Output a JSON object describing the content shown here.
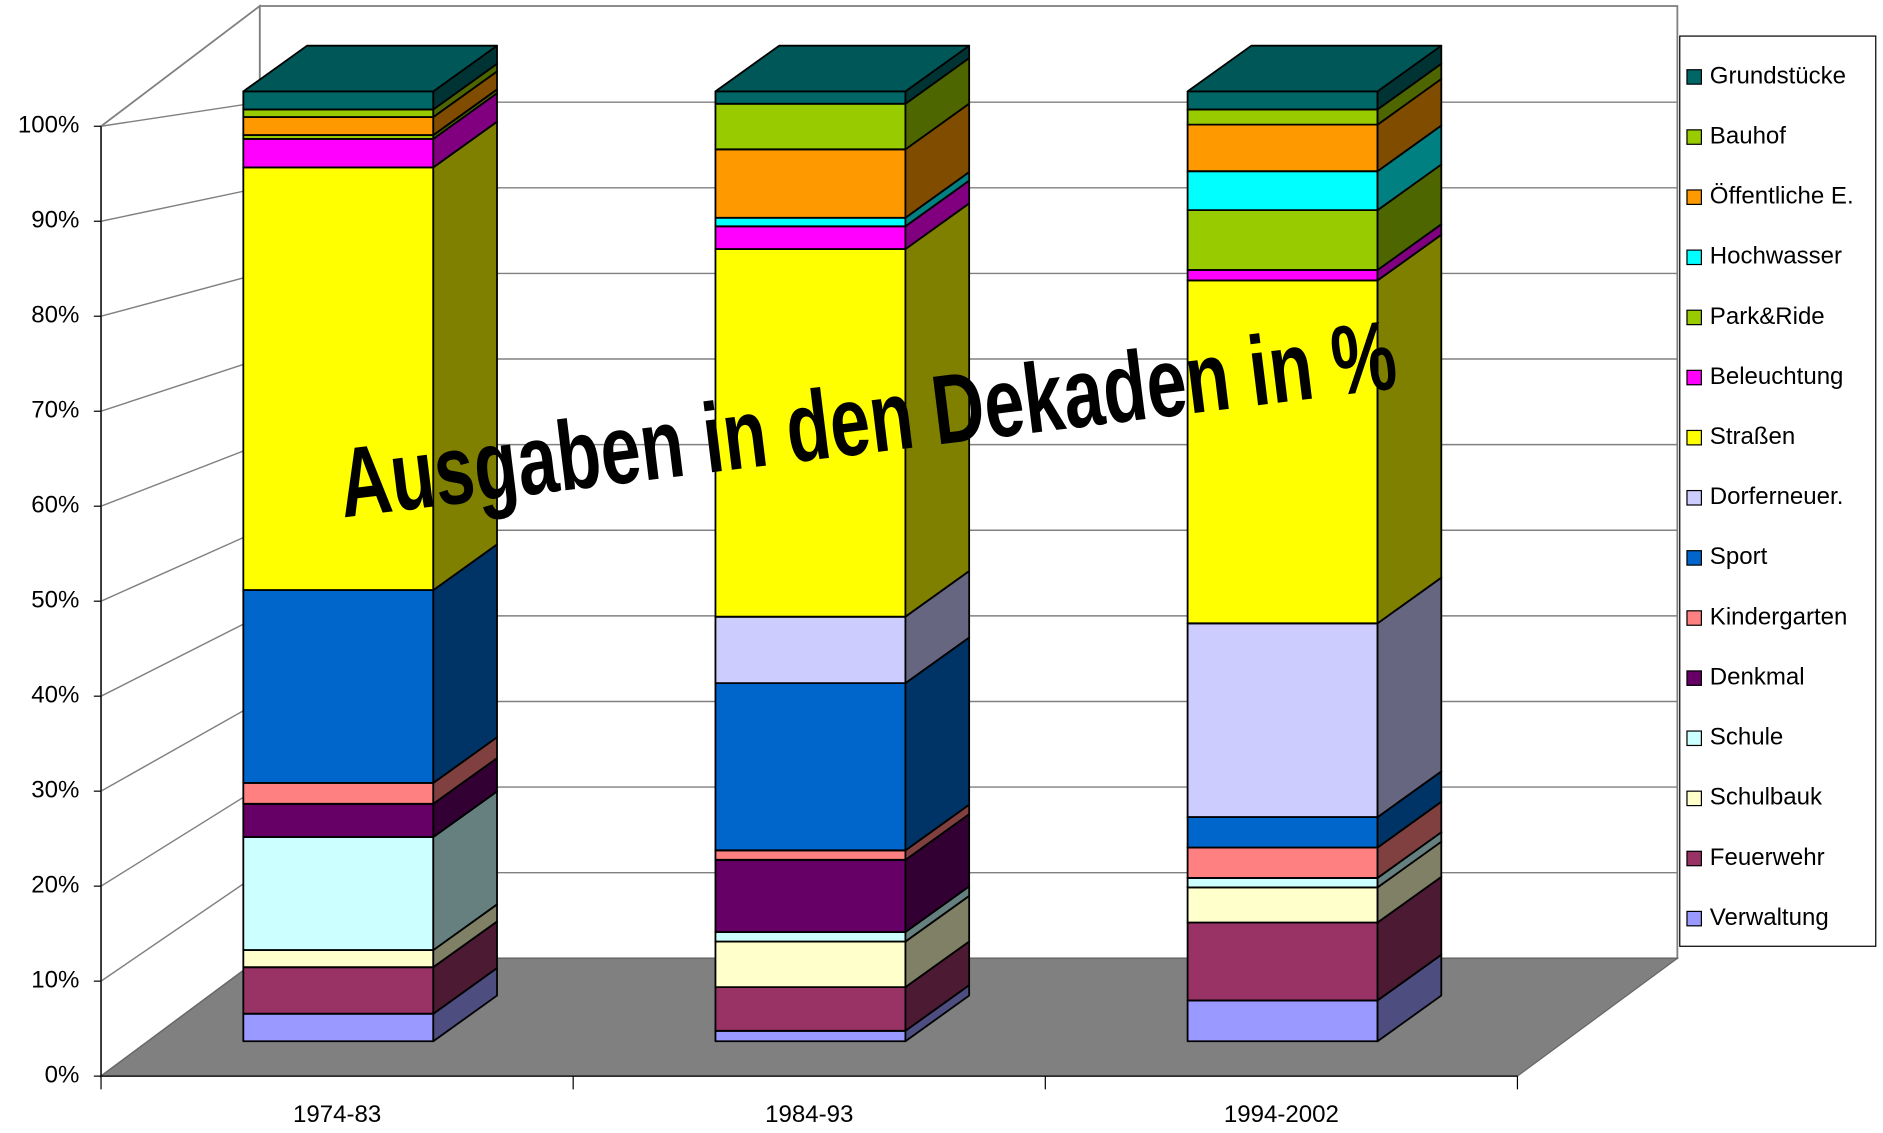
{
  "chart_data": {
    "type": "bar3d_stacked_percent",
    "title": "Ausgaben in den Dekaden in %",
    "categories": [
      "1974-83",
      "1984-93",
      "1994-2002"
    ],
    "ylim": [
      0,
      100
    ],
    "yticks": [
      {
        "value": 0,
        "label": "0%"
      },
      {
        "value": 10,
        "label": "10%"
      },
      {
        "value": 20,
        "label": "20%"
      },
      {
        "value": 30,
        "label": "30%"
      },
      {
        "value": 40,
        "label": "40%"
      },
      {
        "value": 50,
        "label": "50%"
      },
      {
        "value": 60,
        "label": "60%"
      },
      {
        "value": 70,
        "label": "70%"
      },
      {
        "value": 80,
        "label": "80%"
      },
      {
        "value": 90,
        "label": "90%"
      },
      {
        "value": 100,
        "label": "100%"
      }
    ],
    "grid": true,
    "legend": "right",
    "series": [
      {
        "name": "Verwaltung",
        "color": "#9999ff",
        "values": [
          2.9,
          1.1,
          4.3
        ]
      },
      {
        "name": "Feuerwehr",
        "color": "#993366",
        "values": [
          4.9,
          4.6,
          8.2
        ]
      },
      {
        "name": "Schulbauk",
        "color": "#ffffcc",
        "values": [
          1.8,
          4.8,
          3.7
        ]
      },
      {
        "name": "Schule",
        "color": "#ccffff",
        "values": [
          11.9,
          1.0,
          1.0
        ]
      },
      {
        "name": "Denkmal",
        "color": "#660066",
        "values": [
          3.5,
          7.6,
          0
        ]
      },
      {
        "name": "Kindergarten",
        "color": "#ff8080",
        "values": [
          2.2,
          1.0,
          3.2
        ]
      },
      {
        "name": "Sport",
        "color": "#0066cc",
        "values": [
          20.3,
          17.6,
          3.2
        ]
      },
      {
        "name": "Dorferneuer.",
        "color": "#ccccff",
        "values": [
          0,
          7.0,
          20.4
        ]
      },
      {
        "name": "Straßen",
        "color": "#ffff00",
        "values": [
          44.5,
          38.7,
          36.1
        ]
      },
      {
        "name": "Beleuchtung",
        "color": "#ff00ff",
        "values": [
          3.0,
          2.4,
          1.1
        ]
      },
      {
        "name": "Park&Ride",
        "color": "#99cc00",
        "values": [
          0.4,
          0,
          6.3
        ]
      },
      {
        "name": "Hochwasser",
        "color": "#00ffff",
        "values": [
          0,
          0.9,
          4.1
        ]
      },
      {
        "name": "Öffentliche E.",
        "color": "#ff9900",
        "values": [
          1.9,
          7.2,
          4.9
        ]
      },
      {
        "name": "Bauhof",
        "color": "#99cc00",
        "values": [
          0.8,
          4.8,
          1.6
        ]
      },
      {
        "name": "Grundstücke",
        "color": "#006666",
        "values": [
          1.9,
          1.3,
          1.9
        ]
      }
    ]
  }
}
